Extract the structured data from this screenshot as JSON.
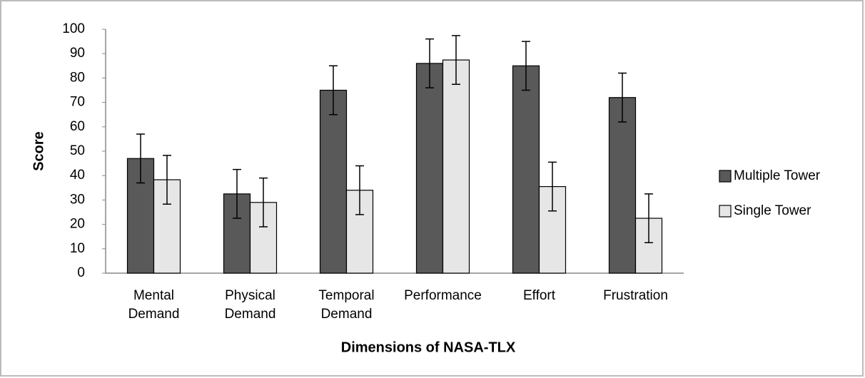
{
  "chart_data": {
    "type": "bar",
    "x_label": "Dimensions of NASA-TLX",
    "y_label": "Score",
    "categories": [
      "Mental Demand",
      "Physical Demand",
      "Temporal Demand",
      "Performance",
      "Effort",
      "Frustration"
    ],
    "series": [
      {
        "name": "Multiple Tower",
        "color": "#595959",
        "values": [
          47,
          32.5,
          75,
          86,
          85,
          72
        ],
        "errors": [
          10,
          10,
          10,
          10,
          10,
          10
        ]
      },
      {
        "name": "Single Tower",
        "color": "#e6e6e6",
        "values": [
          38.3,
          29,
          34,
          87.4,
          35.5,
          22.5
        ],
        "errors": [
          10,
          10,
          10,
          10,
          10,
          10
        ]
      }
    ],
    "ylim": [
      0,
      100
    ],
    "yticks": [
      0,
      10,
      20,
      30,
      40,
      50,
      60,
      70,
      80,
      90,
      100
    ],
    "grid": false,
    "legend": "right"
  }
}
